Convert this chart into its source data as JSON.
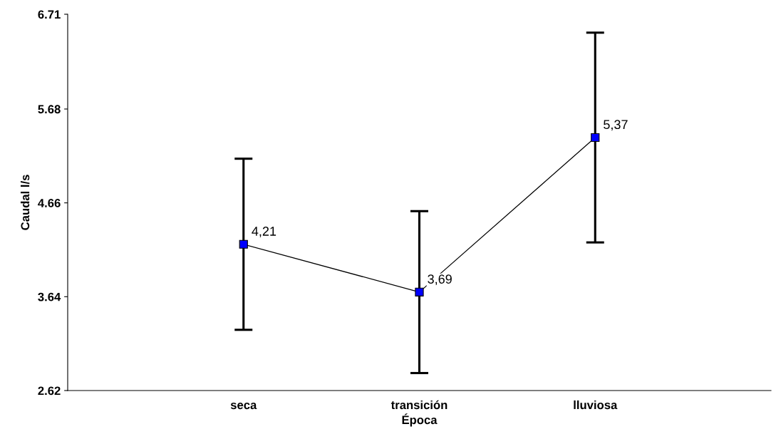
{
  "chart_data": {
    "type": "line",
    "xlabel": "Época",
    "ylabel": "Caudal l/s",
    "categories": [
      "seca",
      "transición",
      "lluviosa"
    ],
    "series": [
      {
        "color": "#0000ff",
        "values": [
          4.21,
          3.69,
          5.37
        ],
        "errors": [
          0.93,
          0.88,
          1.14
        ],
        "value_labels": [
          "4,21",
          "3,69",
          "5,37"
        ]
      }
    ],
    "ylim": [
      2.62,
      6.71
    ],
    "yticks": [
      2.62,
      3.64,
      4.66,
      5.68,
      6.71
    ],
    "marker": "square",
    "line_style": "solid",
    "grid": false,
    "legend": false
  }
}
